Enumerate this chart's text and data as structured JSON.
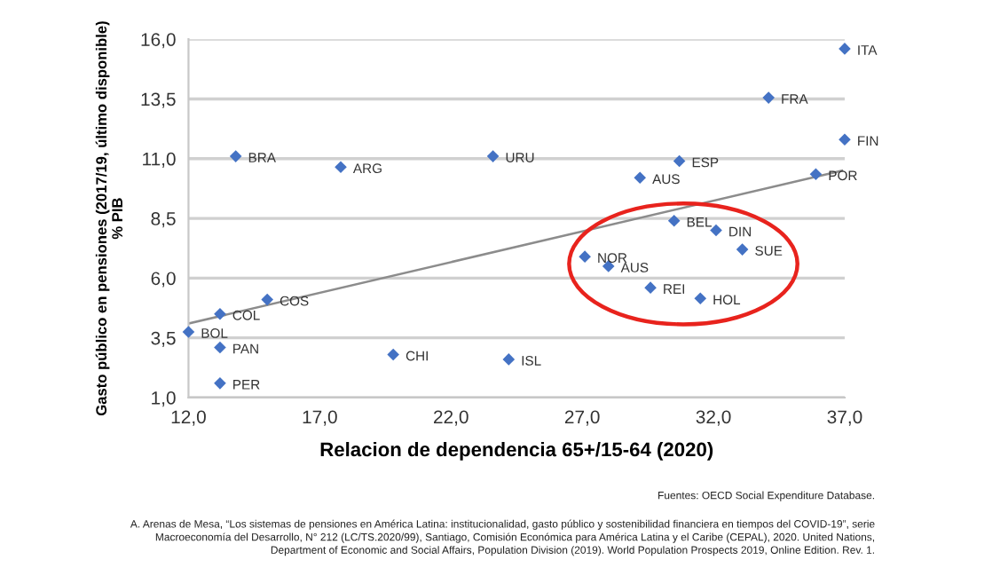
{
  "chart_data": {
    "type": "scatter",
    "xlabel": "Relacion de dependencia 65+/15-64 (2020)",
    "ylabel": "Gasto público en pensiones (2017/19, último disponible)\n% PIB",
    "series": [
      {
        "color": "#4472c4",
        "marker": "diamond",
        "x": [
          13.8,
          17.8,
          23.6,
          30.7,
          29.2,
          37.0,
          34.1,
          37.0,
          35.9,
          30.5,
          32.1,
          33.1,
          27.1,
          28.0,
          29.6,
          31.5,
          24.2,
          12.0,
          13.2,
          13.2,
          13.2,
          15.0,
          19.8
        ],
        "values": [
          11.1,
          10.65,
          11.1,
          10.9,
          10.2,
          15.6,
          13.55,
          11.8,
          10.35,
          8.4,
          8.0,
          7.2,
          6.9,
          6.5,
          5.6,
          5.15,
          2.6,
          3.75,
          4.5,
          3.1,
          1.6,
          5.1,
          2.8
        ]
      },
      {
        "type": "line",
        "color": "#8c8c8c",
        "marker": "none",
        "x": [
          12.0,
          36.9
        ],
        "values": [
          4.1,
          10.5
        ]
      }
    ],
    "xlim": [
      12.0,
      37.0
    ],
    "xticks": [
      {
        "value": 12,
        "label": "12,0"
      },
      {
        "value": 17,
        "label": "17,0"
      },
      {
        "value": 22,
        "label": "22,0"
      },
      {
        "value": 27,
        "label": "27,0"
      },
      {
        "value": 32,
        "label": "32,0"
      },
      {
        "value": 37,
        "label": "37,0"
      }
    ],
    "ylim": [
      1.0,
      16.0
    ],
    "yticks": [
      {
        "value": 1,
        "label": "1,0"
      },
      {
        "value": 3.5,
        "label": "3,5"
      },
      {
        "value": 6,
        "label": "6,0"
      },
      {
        "value": 8.5,
        "label": "8,5"
      },
      {
        "value": 11,
        "label": "11,0"
      },
      {
        "value": 13.5,
        "label": "13,5"
      },
      {
        "value": 16,
        "label": "16,0"
      }
    ],
    "grid": "y",
    "annotations": [
      {
        "text": "BRA",
        "x": 13.8,
        "y": 11.1
      },
      {
        "text": "ARG",
        "x": 17.8,
        "y": 10.65
      },
      {
        "text": "URU",
        "x": 23.6,
        "y": 11.1
      },
      {
        "text": "ESP",
        "x": 30.7,
        "y": 10.9
      },
      {
        "text": "AUS",
        "x": 29.2,
        "y": 10.2
      },
      {
        "text": "ITA",
        "x": 37.0,
        "y": 15.6
      },
      {
        "text": "FRA",
        "x": 34.1,
        "y": 13.55
      },
      {
        "text": "FIN",
        "x": 37.0,
        "y": 11.8
      },
      {
        "text": "POR",
        "x": 35.9,
        "y": 10.35
      },
      {
        "text": "BEL",
        "x": 30.5,
        "y": 8.4
      },
      {
        "text": "DIN",
        "x": 32.1,
        "y": 8.0
      },
      {
        "text": "SUE",
        "x": 33.1,
        "y": 7.2
      },
      {
        "text": "NOR",
        "x": 27.1,
        "y": 6.9
      },
      {
        "text": "AUS",
        "x": 28.0,
        "y": 6.5
      },
      {
        "text": "REI",
        "x": 29.6,
        "y": 5.6
      },
      {
        "text": "HOL",
        "x": 31.5,
        "y": 5.15
      },
      {
        "text": "ISL",
        "x": 24.2,
        "y": 2.6
      },
      {
        "text": "BOL",
        "x": 12.0,
        "y": 3.75
      },
      {
        "text": "COL",
        "x": 13.2,
        "y": 4.5
      },
      {
        "text": "PAN",
        "x": 13.2,
        "y": 3.1
      },
      {
        "text": "PER",
        "x": 13.2,
        "y": 1.6
      },
      {
        "text": "COS",
        "x": 15.0,
        "y": 5.1
      },
      {
        "text": "CHI",
        "x": 19.8,
        "y": 2.8
      },
      "Fuentes: OECD Social Expenditure Database.",
      "A. Arenas de Mesa, “Los sistemas de pensiones en América Latina: institucionalidad, gasto público y sostenibilidad financiera en tiempos del COVID-19”, serie\nMacroeconomía del Desarrollo, N° 212 (LC/TS.2020/99), Santiago, Comisión Económica para América Latina y el Caribe (CEPAL), 2020. United Nations,\nDepartment of Economic and Social Affairs, Population Division (2019). World Population Prospects 2019, Online Edition. Rev. 1."
    ]
  }
}
